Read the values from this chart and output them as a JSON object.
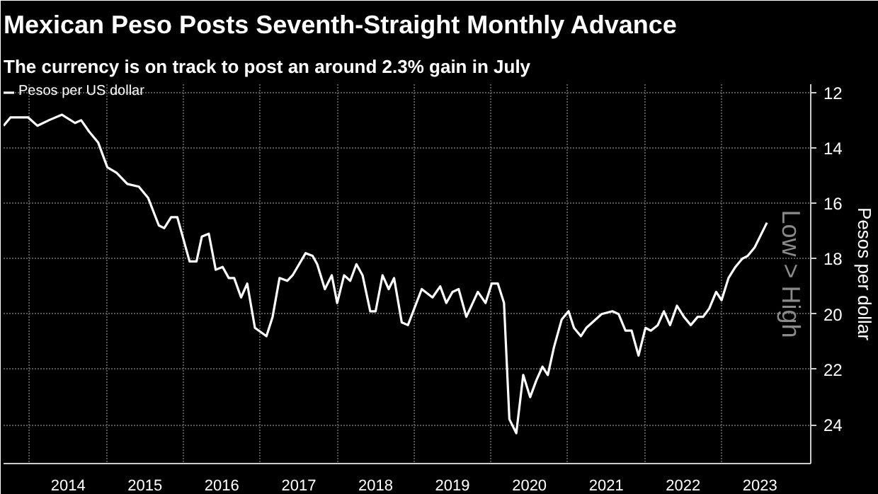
{
  "chart_data": {
    "type": "line",
    "title": "Mexican Peso Posts Seventh-Straight Monthly Advance",
    "subtitle": "The currency is on track to post an around 2.3% gain in July",
    "ylabel": "Pesos per dollar",
    "annotations": [
      "Low > High"
    ],
    "x": [
      2013.66,
      2013.75,
      2013.98,
      2014.1,
      2014.25,
      2014.42,
      2014.59,
      2014.67,
      2014.77,
      2014.89,
      2015.01,
      2015.13,
      2015.27,
      2015.42,
      2015.54,
      2015.68,
      2015.75,
      2015.84,
      2015.92,
      2016.08,
      2016.17,
      2016.24,
      2016.33,
      2016.42,
      2016.51,
      2016.59,
      2016.66,
      2016.75,
      2016.83,
      2016.93,
      2017.08,
      2017.16,
      2017.25,
      2017.35,
      2017.42,
      2017.59,
      2017.68,
      2017.74,
      2017.84,
      2017.93,
      2018.0,
      2018.09,
      2018.17,
      2018.25,
      2018.33,
      2018.43,
      2018.5,
      2018.59,
      2018.67,
      2018.74,
      2018.84,
      2018.92,
      2019.1,
      2019.24,
      2019.34,
      2019.42,
      2019.5,
      2019.58,
      2019.68,
      2019.73,
      2019.83,
      2019.93,
      2020.01,
      2020.09,
      2020.17,
      2020.24,
      2020.33,
      2020.42,
      2020.51,
      2020.59,
      2020.67,
      2020.74,
      2020.82,
      2020.92,
      2021.01,
      2021.08,
      2021.17,
      2021.24,
      2021.32,
      2021.44,
      2021.58,
      2021.66,
      2021.75,
      2021.83,
      2021.92,
      2022.01,
      2022.08,
      2022.17,
      2022.25,
      2022.33,
      2022.42,
      2022.51,
      2022.6,
      2022.69,
      2022.76,
      2022.84,
      2022.93,
      2023.0,
      2023.09,
      2023.18,
      2023.27,
      2023.34,
      2023.43,
      2023.59
    ],
    "series": [
      {
        "name": "Pesos per US dollar",
        "color": "#ffffff",
        "values": [
          13.2,
          12.9,
          12.9,
          13.2,
          13.0,
          12.8,
          13.1,
          13.0,
          13.4,
          13.8,
          14.7,
          14.9,
          15.3,
          15.4,
          15.8,
          16.8,
          16.9,
          16.5,
          16.5,
          18.1,
          18.1,
          17.2,
          17.1,
          18.4,
          18.3,
          18.7,
          18.7,
          19.4,
          18.9,
          20.5,
          20.8,
          20.1,
          18.7,
          18.8,
          18.6,
          17.8,
          17.9,
          18.2,
          19.1,
          18.6,
          19.6,
          18.6,
          18.8,
          18.2,
          18.6,
          19.9,
          19.9,
          18.6,
          19.1,
          18.7,
          20.3,
          20.4,
          19.1,
          19.4,
          19.0,
          19.6,
          19.2,
          19.1,
          20.1,
          19.8,
          19.2,
          19.6,
          18.9,
          18.9,
          19.6,
          23.8,
          24.3,
          22.2,
          23.0,
          22.4,
          21.9,
          22.2,
          21.2,
          20.2,
          19.9,
          20.5,
          20.8,
          20.5,
          20.3,
          20.0,
          19.9,
          20.0,
          20.6,
          20.6,
          21.5,
          20.5,
          20.6,
          20.4,
          19.9,
          20.4,
          19.7,
          20.1,
          20.4,
          20.1,
          20.1,
          19.8,
          19.2,
          19.5,
          18.7,
          18.3,
          18.0,
          17.9,
          17.6,
          16.7
        ]
      }
    ],
    "xlim": [
      2013.66,
      2024.16
    ],
    "ylim": [
      25.4,
      11.7
    ],
    "xticks": [
      {
        "value": 2014,
        "label": null
      },
      {
        "value": 2014.5,
        "label": "2014"
      },
      {
        "value": 2015,
        "label": null
      },
      {
        "value": 2015.5,
        "label": "2015"
      },
      {
        "value": 2016,
        "label": null
      },
      {
        "value": 2016.5,
        "label": "2016"
      },
      {
        "value": 2017,
        "label": null
      },
      {
        "value": 2017.5,
        "label": "2017"
      },
      {
        "value": 2018,
        "label": null
      },
      {
        "value": 2018.5,
        "label": "2018"
      },
      {
        "value": 2019,
        "label": null
      },
      {
        "value": 2019.5,
        "label": "2019"
      },
      {
        "value": 2020,
        "label": null
      },
      {
        "value": 2020.5,
        "label": "2020"
      },
      {
        "value": 2021,
        "label": null
      },
      {
        "value": 2021.5,
        "label": "2021"
      },
      {
        "value": 2022,
        "label": null
      },
      {
        "value": 2022.5,
        "label": "2022"
      },
      {
        "value": 2023,
        "label": null
      },
      {
        "value": 2023.5,
        "label": "2023"
      }
    ],
    "yticks": [
      12,
      14,
      16,
      18,
      20,
      22,
      24
    ],
    "grid": true,
    "legend": "top left",
    "marker": "none",
    "line_style": "solid"
  }
}
